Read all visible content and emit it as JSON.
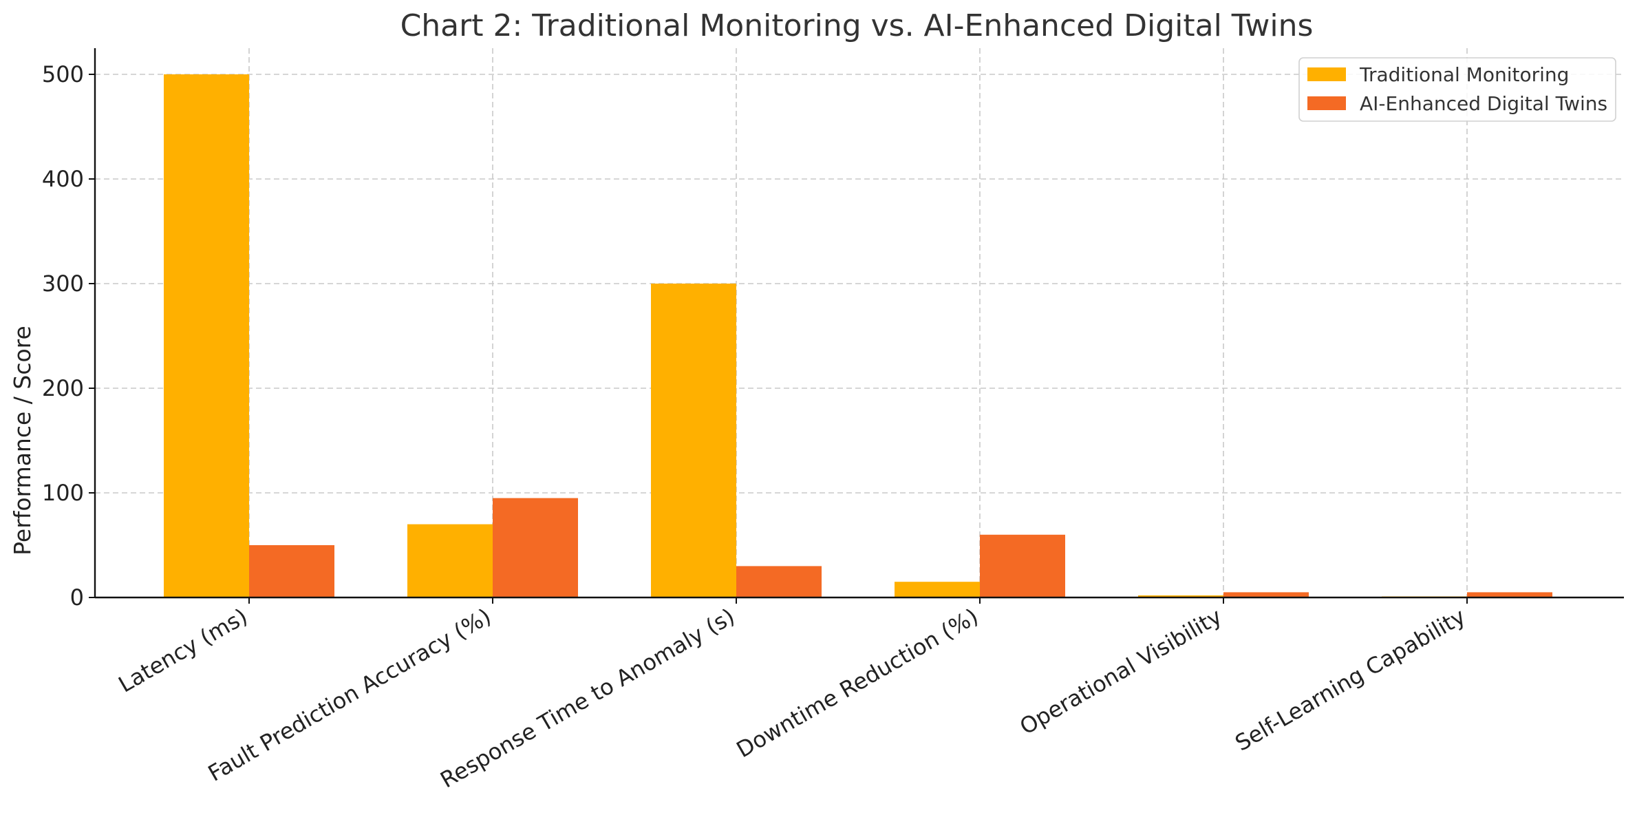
{
  "chart_data": {
    "type": "bar",
    "title": "Chart 2: Traditional Monitoring vs. AI-Enhanced Digital Twins",
    "xlabel": "",
    "ylabel": "Performance / Score",
    "categories": [
      "Latency (ms)",
      "Fault Prediction Accuracy (%)",
      "Response Time to Anomaly (s)",
      "Downtime Reduction (%)",
      "Operational Visibility",
      "Self-Learning Capability"
    ],
    "series": [
      {
        "name": "Traditional Monitoring",
        "color": "#FFB000",
        "values": [
          500,
          70,
          300,
          15,
          2,
          1
        ]
      },
      {
        "name": "AI-Enhanced Digital Twins",
        "color": "#F46A24",
        "values": [
          50,
          95,
          30,
          60,
          5,
          5
        ]
      }
    ],
    "ylim": [
      0,
      525
    ],
    "yticks": [
      0,
      100,
      200,
      300,
      400,
      500
    ],
    "grid": true,
    "legend": {
      "placement": "top-right"
    }
  }
}
